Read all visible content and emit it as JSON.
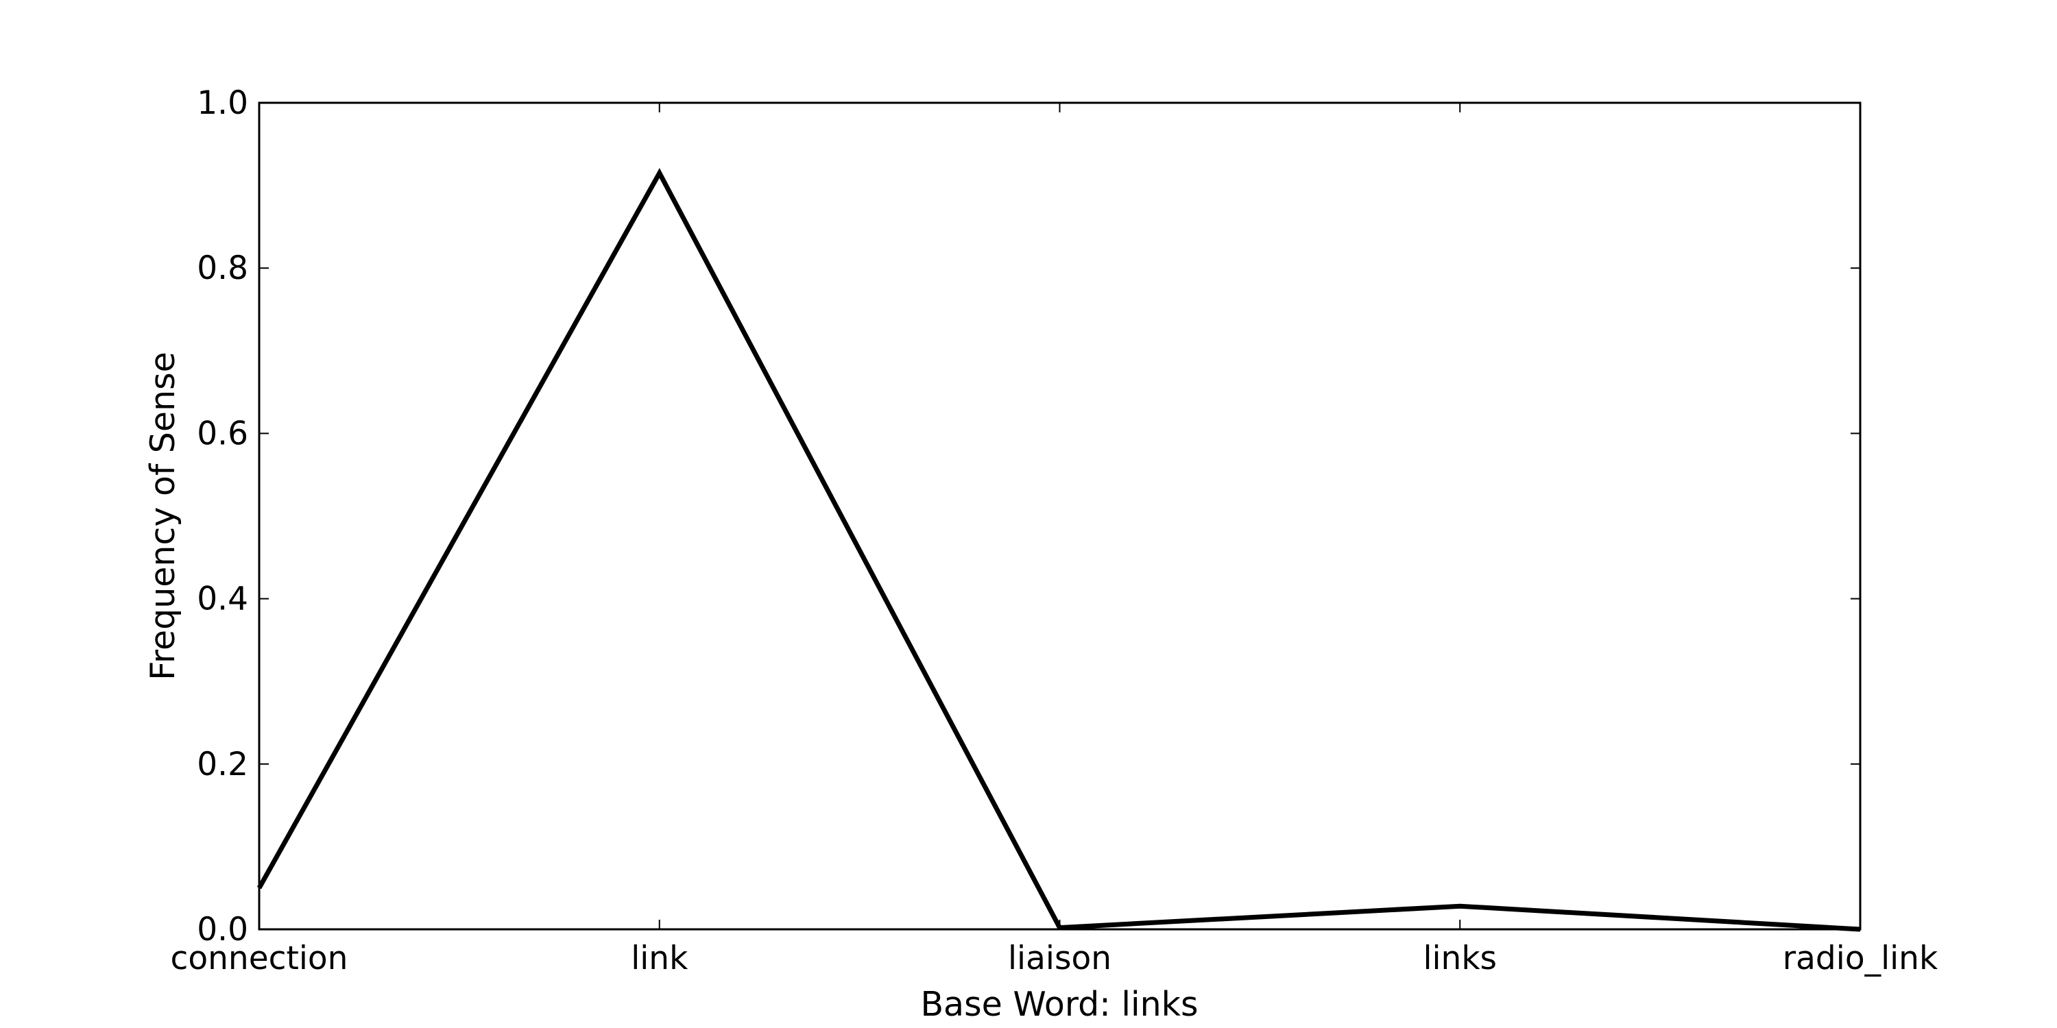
{
  "chart_data": {
    "type": "line",
    "title": "",
    "xlabel": "Base Word: links",
    "ylabel": "Frequency of Sense",
    "categories": [
      "connection",
      "link",
      "liaison",
      "links",
      "radio_link"
    ],
    "values": [
      0.05,
      0.915,
      0.002,
      0.028,
      0.0
    ],
    "ylim": [
      0,
      1.0
    ],
    "yticks": [
      "0.0",
      "0.2",
      "0.4",
      "0.6",
      "0.8",
      "1.0"
    ],
    "grid": false,
    "line_color": "#000000"
  }
}
